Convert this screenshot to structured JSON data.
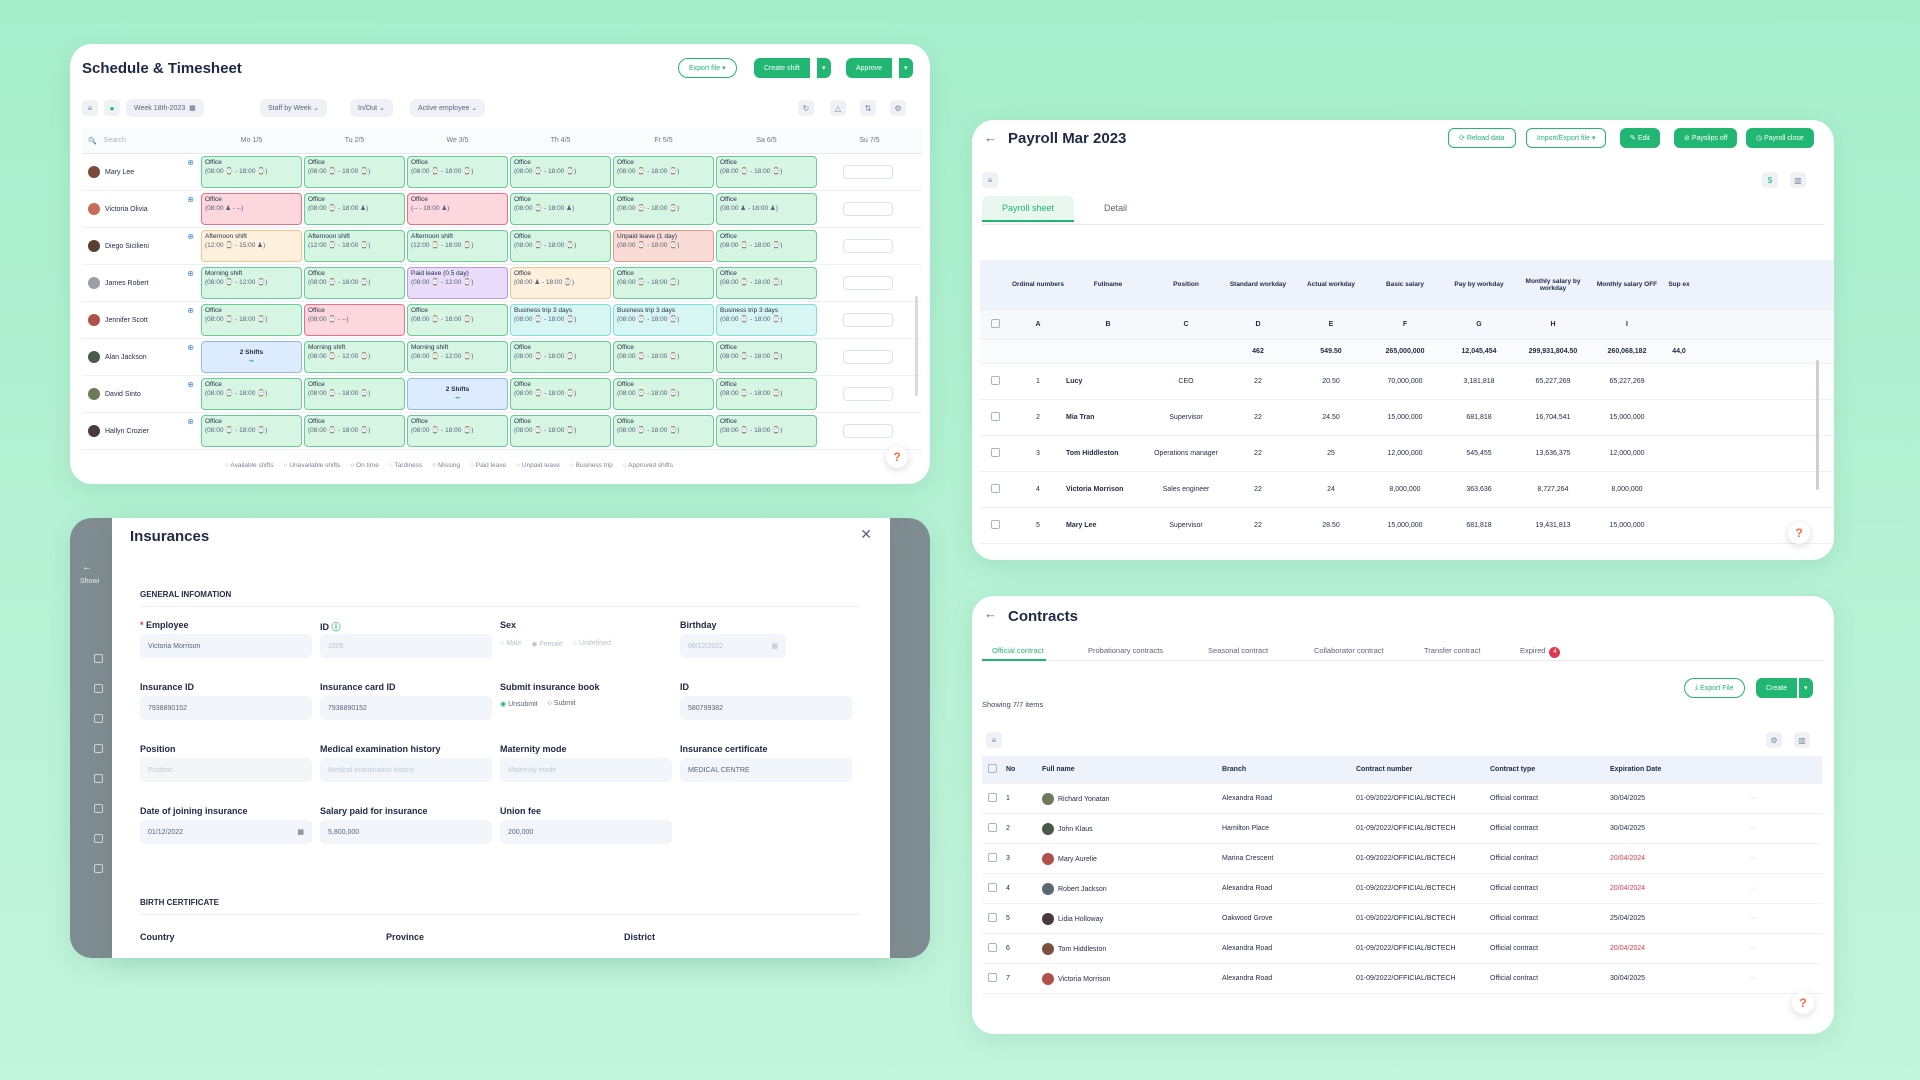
{
  "schedule": {
    "title": "Schedule & Timesheet",
    "export": "Export file ▾",
    "create": "Create shift",
    "approve": "Approve",
    "filters": [
      "Week 18th-2023",
      "Staff by Week",
      "In/Out",
      "Active employee"
    ],
    "search": "Search",
    "days": [
      "Mo 1/5",
      "Tu 2/5",
      "We 3/5",
      "Th 4/5",
      "Fr 5/5",
      "Sa 6/5",
      "Su 7/5"
    ],
    "rows": [
      {
        "name": "Mary Lee",
        "cells": [
          [
            "off",
            "Office",
            "(08:00 ⌚ - 18:00 ⌚)"
          ],
          [
            "off",
            "Office",
            "(08:00 ⌚ - 18:00 ⌚)"
          ],
          [
            "off",
            "Office",
            "(08:00 ⌚ - 18:00 ⌚)"
          ],
          [
            "off",
            "Office",
            "(08:00 ⌚ - 18:00 ⌚)"
          ],
          [
            "off",
            "Office",
            "(08:00 ⌚ - 18:00 ⌚)"
          ],
          [
            "off",
            "Office",
            "(08:00 ⌚ - 18:00 ⌚)"
          ]
        ]
      },
      {
        "name": "Victoria Olivia",
        "cells": [
          [
            "miss",
            "Office",
            "(08:00 ♟ - --)"
          ],
          [
            "off",
            "Office",
            "(08:00 ⌚ - 18:00 ♟)"
          ],
          [
            "miss",
            "Office",
            "(-- - 18:00 ♟)"
          ],
          [
            "off",
            "Office",
            "(08:00 ⌚ - 18:00 ♟)"
          ],
          [
            "off",
            "Office",
            "(08:00 ⌚ - 18:00 ⌚)"
          ],
          [
            "off",
            "Office",
            "(08:00 ♟ - 18:00 ♟)"
          ]
        ]
      },
      {
        "name": "Diego Sicilieni",
        "cells": [
          [
            "aft",
            "Afternoon shift",
            "(12:00 ⌚ - 15:00 ♟)"
          ],
          [
            "off",
            "Afternoon shift",
            "(12:00 ⌚ - 18:00 ⌚)"
          ],
          [
            "off",
            "Afternoon shift",
            "(12:00 ⌚ - 18:00 ⌚)"
          ],
          [
            "off",
            "Office",
            "(08:00 ⌚ - 18:00 ⌚)"
          ],
          [
            "ul",
            "Unpaid leave (1 day)",
            "(08:00 ⌚ - 18:00 ⌚)"
          ],
          [
            "off",
            "Office",
            "(08:00 ⌚ - 18:00 ⌚)"
          ]
        ]
      },
      {
        "name": "James Robert",
        "cells": [
          [
            "off",
            "Morning shift",
            "(08:00 ⌚ - 12:00 ⌚)"
          ],
          [
            "off",
            "Office",
            "(08:00 ⌚ - 18:00 ⌚)"
          ],
          [
            "pl",
            "Paid leave (0.5 day)",
            "(08:00 ⌚ - 12:00 ⌚)"
          ],
          [
            "aft",
            "Office",
            "(08:00 ♟ - 18:00 ⌚)"
          ],
          [
            "off",
            "Office",
            "(08:00 ⌚ - 18:00 ⌚)"
          ],
          [
            "off",
            "Office",
            "(08:00 ⌚ - 18:00 ⌚)"
          ]
        ]
      },
      {
        "name": "Jennifer Scott",
        "cells": [
          [
            "off",
            "Office",
            "(08:00 ⌚ - 18:00 ⌚)"
          ],
          [
            "miss",
            "Office",
            "(08:00 ⌚ - --)"
          ],
          [
            "off",
            "Office",
            "(08:00 ⌚ - 18:00 ⌚)"
          ],
          [
            "bt",
            "Business trip 3 days",
            "(08:00 ⌚ - 18:00 ⌚)"
          ],
          [
            "bt",
            "Business trip 3 days",
            "(08:00 ⌚ - 18:00 ⌚)"
          ],
          [
            "bt",
            "Business trip 3 days",
            "(08:00 ⌚ - 18:00 ⌚)"
          ]
        ]
      },
      {
        "name": "Alan Jackson",
        "cells": [
          [
            "2s",
            "2 Shifts",
            "••"
          ],
          [
            "off",
            "Morning shift",
            "(08:00 ⌚ - 12:00 ⌚)"
          ],
          [
            "off",
            "Morning shift",
            "(08:00 ⌚ - 12:00 ⌚)"
          ],
          [
            "off",
            "Office",
            "(08:00 ⌚ - 18:00 ⌚)"
          ],
          [
            "off",
            "Office",
            "(08:00 ⌚ - 18:00 ⌚)"
          ],
          [
            "off",
            "Office",
            "(08:00 ⌚ - 18:00 ⌚)"
          ]
        ]
      },
      {
        "name": "David Sinto",
        "cells": [
          [
            "off",
            "Office",
            "(08:00 ⌚ - 18:00 ⌚)"
          ],
          [
            "off",
            "Office",
            "(08:00 ⌚ - 18:00 ⌚)"
          ],
          [
            "2s",
            "2 Shifts",
            "••"
          ],
          [
            "off",
            "Office",
            "(08:00 ⌚ - 18:00 ⌚)"
          ],
          [
            "off",
            "Office",
            "(08:00 ⌚ - 18:00 ⌚)"
          ],
          [
            "off",
            "Office",
            "(08:00 ⌚ - 18:00 ⌚)"
          ]
        ]
      },
      {
        "name": "Hallyn Crozier",
        "cells": [
          [
            "off",
            "Office",
            "(08:00 ⌚ - 18:00 ⌚)"
          ],
          [
            "off",
            "Office",
            "(08:00 ⌚ - 18:00 ⌚)"
          ],
          [
            "off",
            "Office",
            "(08:00 ⌚ - 18:00 ⌚)"
          ],
          [
            "off",
            "Office",
            "(08:00 ⌚ - 18:00 ⌚)"
          ],
          [
            "off",
            "Office",
            "(08:00 ⌚ - 18:00 ⌚)"
          ],
          [
            "off",
            "Office",
            "(08:00 ⌚ - 18:00 ⌚)"
          ]
        ]
      }
    ],
    "legend": [
      "Available shifts",
      "Unavailable shifts",
      "On time",
      "Tardiness",
      "Missing",
      "Paid leave",
      "Unpaid leave",
      "Business trip",
      "Approved shifts"
    ]
  },
  "payroll": {
    "title": "Payroll Mar 2023",
    "buttons": [
      "Reload data",
      "Import/Export file ▾",
      "Edit",
      "Payslips off",
      "Payroll close"
    ],
    "tabs": [
      "Payroll sheet",
      "Detail"
    ],
    "headers": [
      "Ordinal numbers",
      "Fullname",
      "Position",
      "Standard workday",
      "Actual workday",
      "Basic salary",
      "Pay by workday",
      "Monthly salary by workday",
      "Monthly salary OFF",
      "Sup ex"
    ],
    "letters": [
      "A",
      "B",
      "C",
      "D",
      "E",
      "F",
      "G",
      "H",
      "I",
      ""
    ],
    "totals": [
      "",
      "",
      "",
      "462",
      "549.50",
      "265,000,000",
      "12,045,454",
      "299,931,804.50",
      "260,068,182",
      "44,0"
    ],
    "rows": [
      [
        "1",
        "Lucy",
        "CEO",
        "22",
        "20.50",
        "70,000,000",
        "3,181,818",
        "65,227,269",
        "65,227,269"
      ],
      [
        "2",
        "Mia Tran",
        "Supervisor",
        "22",
        "24.50",
        "15,000,000",
        "681,818",
        "16,704,541",
        "15,000,000"
      ],
      [
        "3",
        "Tom Hiddleston",
        "Operations manager",
        "22",
        "25",
        "12,000,000",
        "545,455",
        "13,636,375",
        "12,000,000"
      ],
      [
        "4",
        "Victoria Morrison",
        "Sales engineer",
        "22",
        "24",
        "8,000,000",
        "363,636",
        "8,727,264",
        "8,000,000"
      ],
      [
        "5",
        "Mary Lee",
        "Supervisor",
        "22",
        "28.50",
        "15,000,000",
        "681,818",
        "19,431,813",
        "15,000,000"
      ]
    ]
  },
  "insurance": {
    "title": "Insurances",
    "section1": "GENERAL INFOMATION",
    "section2": "BIRTH CERTIFICATE",
    "fields": {
      "employee_label": "Employee",
      "employee_value": "Victoria Morrison",
      "id_label": "ID",
      "id_value": "1005",
      "sex_label": "Sex",
      "sex_opts": [
        "Male",
        "Female",
        "Undefined"
      ],
      "birthday_label": "Birthday",
      "birthday_value": "08/12/2022",
      "ins_id_label": "Insurance ID",
      "ins_id_value": "7938890152",
      "card_id_label": "Insurance card ID",
      "card_id_value": "7938890152",
      "book_label": "Submit insurance book",
      "book_opts": [
        "Unsubmit",
        "Submit"
      ],
      "id2_label": "ID",
      "id2_value": "580799382",
      "position_label": "Position",
      "position_ph": "Position",
      "med_label": "Medical examination history",
      "med_ph": "Medical examination history",
      "mat_label": "Maternity mode",
      "mat_ph": "Maternity mode",
      "cert_label": "Insurance certificate",
      "cert_value": "MEDICAL CENTRE",
      "join_label": "Date of joining insurance",
      "join_value": "01/12/2022",
      "salary_label": "Salary paid for insurance",
      "salary_value": "5,800,000",
      "union_label": "Union fee",
      "union_value": "200,000",
      "country_label": "Country",
      "province_label": "Province",
      "district_label": "District"
    },
    "bg_showing": "Showi"
  },
  "contracts": {
    "title": "Contracts",
    "tabs": [
      "Official contract",
      "Probationary contracts",
      "Seasonal contract",
      "Collaborator contract",
      "Transfer contract",
      "Expired"
    ],
    "expired_badge": "4",
    "export": "Export File",
    "create": "Create",
    "showing": "Showing 7/7 items",
    "headers": [
      "No",
      "Full name",
      "Branch",
      "Contract number",
      "Contract type",
      "Expiration Date"
    ],
    "rows": [
      [
        "1",
        "Richard Yonatan",
        "Alexandra Road",
        "01-09/2022/OFFICIAL/BCTECH",
        "Official contract",
        "30/04/2025"
      ],
      [
        "2",
        "John Klaus",
        "Hamilton Place",
        "01-09/2022/OFFICIAL/BCTECH",
        "Official contract",
        "30/04/2025"
      ],
      [
        "3",
        "Mary Aurelie",
        "Marina Crescent",
        "01-09/2022/OFFICIAL/BCTECH",
        "Official contract",
        "20/04/2024"
      ],
      [
        "4",
        "Robert Jackson",
        "Alexandra Road",
        "01-09/2022/OFFICIAL/BCTECH",
        "Official contract",
        "20/04/2024"
      ],
      [
        "5",
        "Lidia Holloway",
        "Oakwood Grove",
        "01-09/2022/OFFICIAL/BCTECH",
        "Official contract",
        "25/04/2025"
      ],
      [
        "6",
        "Tom Hiddleston",
        "Alexandra Road",
        "01-09/2022/OFFICIAL/BCTECH",
        "Official contract",
        "20/04/2024"
      ],
      [
        "7",
        "Victoria Morrison",
        "Alexandra Road",
        "01-09/2022/OFFICIAL/BCTECH",
        "Official contract",
        "30/04/2025"
      ]
    ],
    "expired_dates": [
      "20/04/2024"
    ]
  },
  "colors": {
    "accent": "#22b673",
    "bg": "#a6efcd",
    "danger": "#e0384f"
  }
}
